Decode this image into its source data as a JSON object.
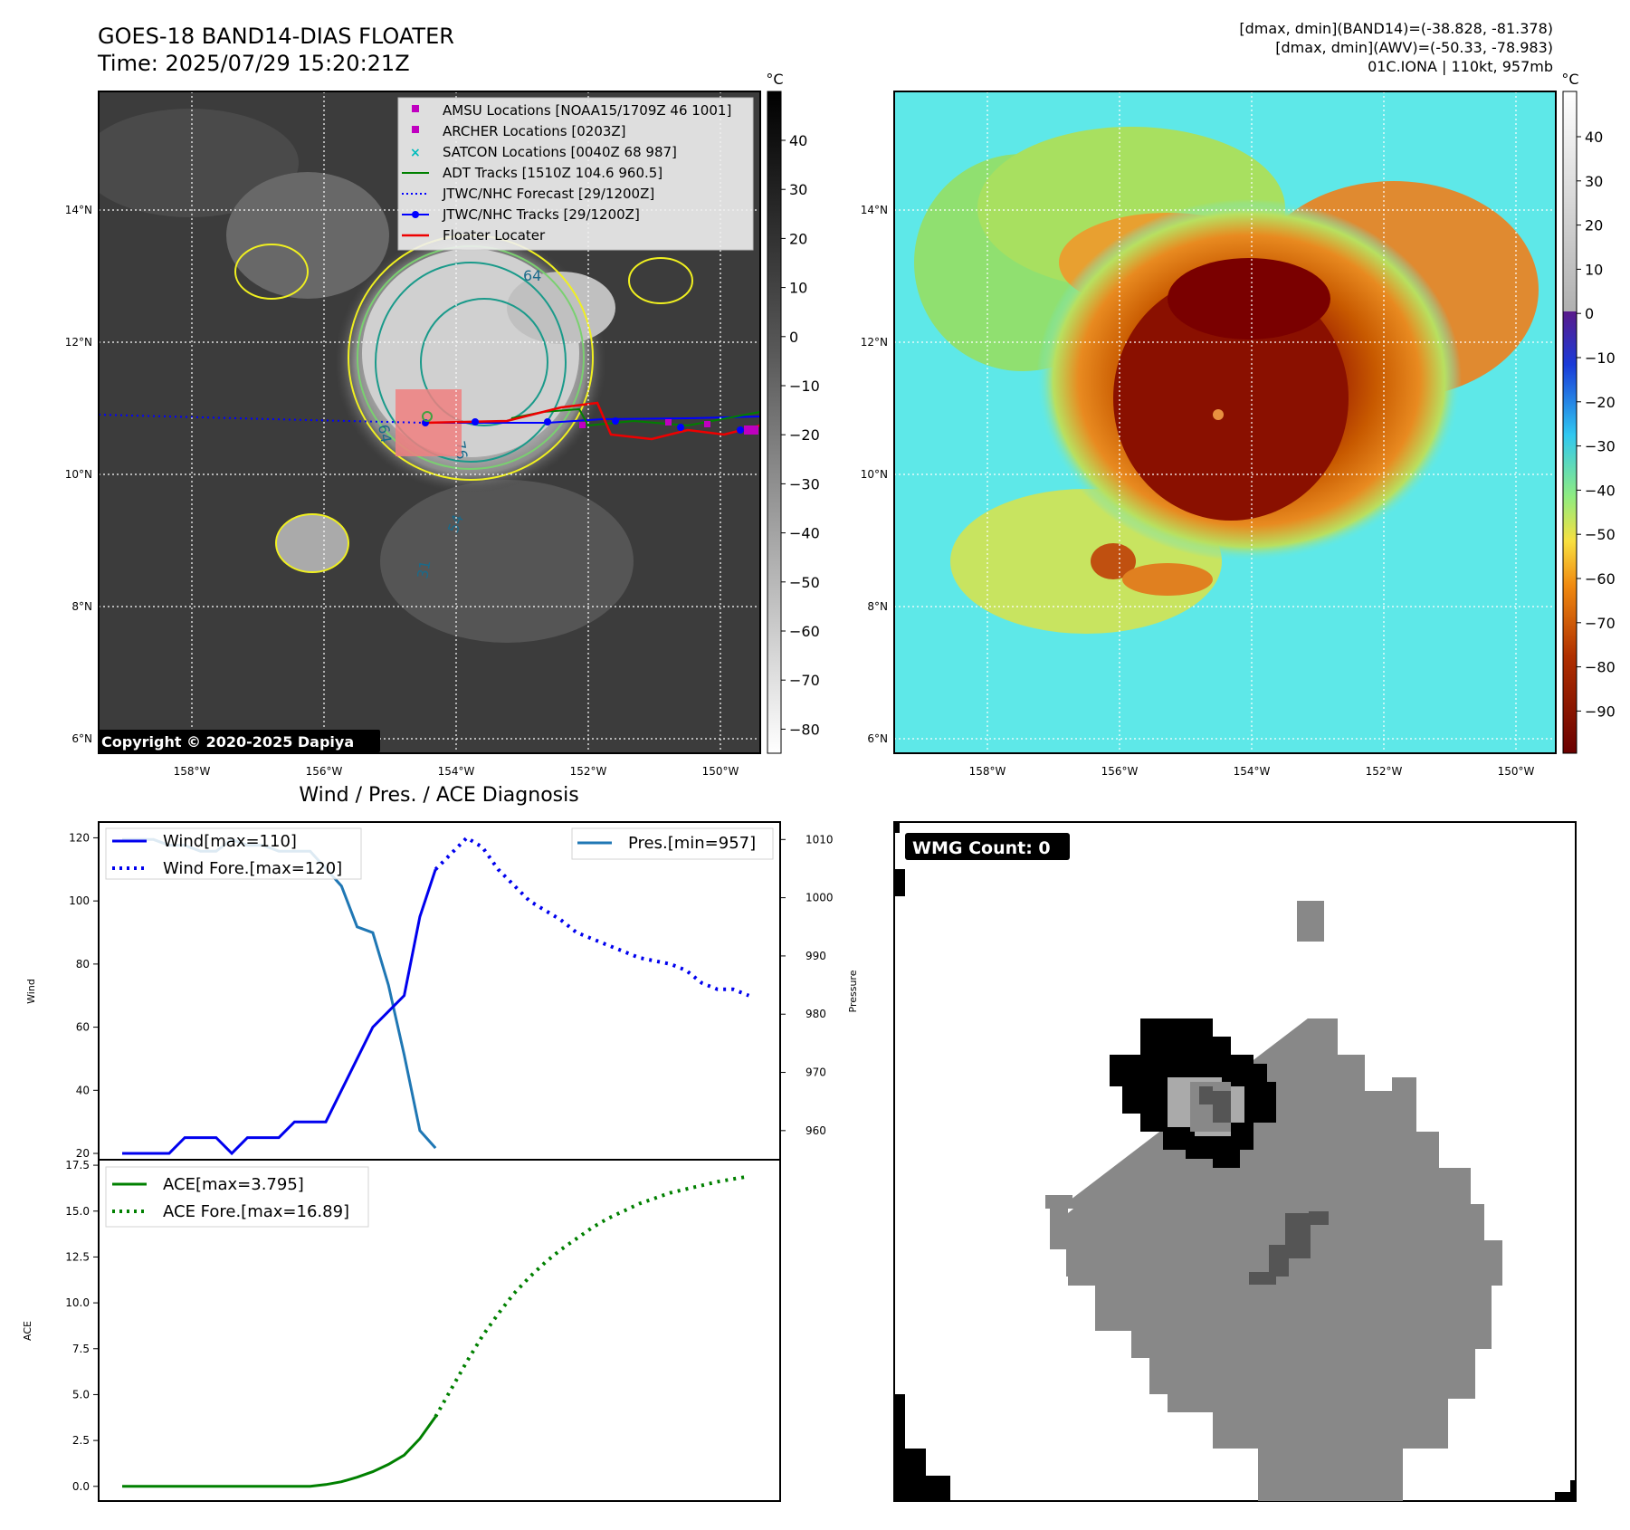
{
  "header": {
    "title_line1": "GOES-18 BAND14-DIAS FLOATER",
    "title_line2": "Time: 2025/07/29 15:20:21Z",
    "right_line1": "[dmax, dmin](BAND14)=(-38.828, -81.378)",
    "right_line2": "[dmax, dmin](AWV)=(-50.33, -78.983)",
    "right_line3": "01C.IONA | 110kt, 957mb"
  },
  "colors": {
    "wind": "#0000ee",
    "pres": "#1f77b4",
    "ace": "#008000",
    "adt": "#008000",
    "jtwc": "#0000ff",
    "floater": "#ee0000",
    "amsu": "#c000c0",
    "satcon": "#00bcbc",
    "contour_yellow": "#f0f020",
    "contour_teal": "#1a9a8a"
  },
  "ir_panel": {
    "unit": "°C",
    "colorbar_ticks": [
      "40",
      "30",
      "20",
      "10",
      "0",
      "−10",
      "−20",
      "−30",
      "−40",
      "−50",
      "−60",
      "−70",
      "−80"
    ],
    "lat_labels": [
      "14°N",
      "12°N",
      "10°N",
      "8°N",
      "6°N"
    ],
    "lon_labels": [
      "158°W",
      "156°W",
      "154°W",
      "152°W",
      "150°W"
    ],
    "copyright": "Copyright © 2020-2025 Dapiya",
    "contour_labels": [
      "64",
      "76",
      "64",
      "54",
      "31"
    ],
    "legend": [
      {
        "label": "AMSU Locations [NOAA15/1709Z 46 1001]",
        "icon": "square-marker-magenta"
      },
      {
        "label": "ARCHER Locations [0203Z]",
        "icon": "square-marker-magenta"
      },
      {
        "label": "SATCON Locations [0040Z 68 987]",
        "icon": "x-marker-cyan"
      },
      {
        "label": "ADT Tracks [1510Z 104.6 960.5]",
        "icon": "green-line"
      },
      {
        "label": "JTWC/NHC Forecast [29/1200Z]",
        "icon": "blue-dotted-line"
      },
      {
        "label": "JTWC/NHC Tracks [29/1200Z]",
        "icon": "blue-line-dot"
      },
      {
        "label": "Floater Locater",
        "icon": "red-line"
      }
    ]
  },
  "wv_panel": {
    "unit": "°C",
    "colorbar_ticks": [
      "40",
      "30",
      "20",
      "10",
      "0",
      "−10",
      "−20",
      "−30",
      "−40",
      "−50",
      "−60",
      "−70",
      "−80",
      "−90"
    ],
    "lat_labels": [
      "14°N",
      "12°N",
      "10°N",
      "8°N",
      "6°N"
    ],
    "lon_labels": [
      "158°W",
      "156°W",
      "154°W",
      "152°W",
      "150°W"
    ]
  },
  "wmg_panel": {
    "badge": "WMG Count: 0"
  },
  "chart_data": [
    {
      "type": "line",
      "title": "Wind / Pres. / ACE Diagnosis",
      "ylabel": "Wind",
      "ylabel_right": "Pressure",
      "ylim": [
        18,
        125
      ],
      "ylim_right": [
        955,
        1013
      ],
      "yticks": [
        20,
        40,
        60,
        80,
        100,
        120
      ],
      "yticks_right": [
        960,
        970,
        980,
        990,
        1000,
        1010
      ],
      "series": [
        {
          "name": "Wind[max=110]",
          "style": "solid",
          "axis": "left",
          "x": [
            0,
            1,
            2,
            3,
            4,
            5,
            6,
            7,
            8,
            9,
            10,
            11,
            12,
            13,
            14,
            15,
            16,
            17,
            18,
            19,
            20
          ],
          "values": [
            20,
            20,
            20,
            20,
            25,
            25,
            25,
            20,
            25,
            25,
            25,
            30,
            30,
            30,
            40,
            50,
            60,
            65,
            70,
            95,
            110
          ]
        },
        {
          "name": "Wind Fore.[max=120]",
          "style": "dotted",
          "axis": "left",
          "x": [
            20,
            21,
            22,
            23,
            24,
            25,
            26,
            27,
            28,
            29,
            30,
            31,
            32,
            33,
            34,
            35,
            36,
            37,
            38,
            39,
            40
          ],
          "values": [
            110,
            115,
            120,
            117,
            110,
            105,
            100,
            97,
            94,
            90,
            88,
            86,
            84,
            82,
            81,
            80,
            78,
            74,
            72,
            72,
            70
          ]
        },
        {
          "name": "Pres.[min=957]",
          "style": "solid",
          "axis": "right",
          "x": [
            0,
            1,
            2,
            3,
            4,
            5,
            6,
            7,
            8,
            9,
            10,
            11,
            12,
            13,
            14,
            15,
            16,
            17,
            18,
            19,
            20
          ],
          "values": [
            1010,
            1010,
            1010,
            1009,
            1009,
            1008,
            1008,
            1010,
            1009,
            1009,
            1008,
            1008,
            1008,
            1005,
            1002,
            995,
            994,
            985,
            973,
            960,
            957
          ]
        }
      ]
    },
    {
      "type": "line",
      "ylabel": "ACE",
      "ylim": [
        -0.8,
        17.8
      ],
      "yticks": [
        0.0,
        2.5,
        5.0,
        7.5,
        10.0,
        12.5,
        15.0,
        17.5
      ],
      "series": [
        {
          "name": "ACE[max=3.795]",
          "style": "solid",
          "x": [
            0,
            1,
            2,
            3,
            4,
            5,
            6,
            7,
            8,
            9,
            10,
            11,
            12,
            13,
            14,
            15,
            16,
            17,
            18,
            19,
            20
          ],
          "values": [
            0,
            0,
            0,
            0,
            0,
            0,
            0,
            0,
            0,
            0,
            0,
            0,
            0,
            0.1,
            0.25,
            0.5,
            0.8,
            1.2,
            1.7,
            2.6,
            3.795
          ]
        },
        {
          "name": "ACE Fore.[max=16.89]",
          "style": "dotted",
          "x": [
            20,
            21,
            22,
            23,
            24,
            25,
            26,
            27,
            28,
            29,
            30,
            31,
            32,
            33,
            34,
            35,
            36,
            37,
            38,
            39,
            40
          ],
          "values": [
            3.795,
            5.3,
            6.8,
            8.2,
            9.4,
            10.5,
            11.4,
            12.2,
            12.9,
            13.5,
            14.1,
            14.6,
            15.0,
            15.4,
            15.7,
            16.0,
            16.2,
            16.4,
            16.6,
            16.75,
            16.89
          ]
        }
      ]
    }
  ]
}
